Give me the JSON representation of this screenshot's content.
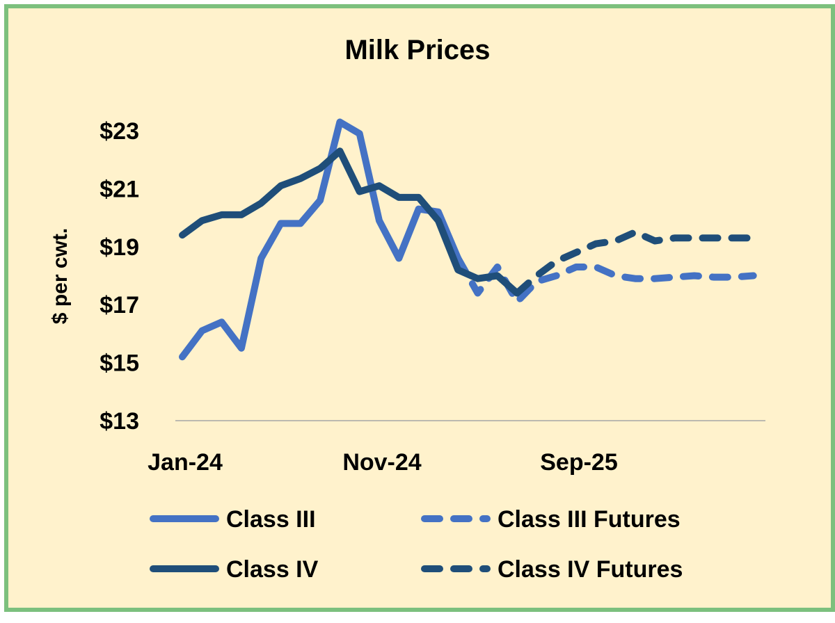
{
  "chart_data": {
    "type": "line",
    "title": "Milk Prices",
    "ylabel": "$ per cwt.",
    "xlabel": "",
    "ylim": [
      13,
      23
    ],
    "yticks": [
      "$13",
      "$15",
      "$17",
      "$19",
      "$21",
      "$23"
    ],
    "ytick_values": [
      13,
      15,
      17,
      19,
      21,
      23
    ],
    "x": [
      "Jan-24",
      "Feb-24",
      "Mar-24",
      "Apr-24",
      "May-24",
      "Jun-24",
      "Jul-24",
      "Aug-24",
      "Sep-24",
      "Oct-24",
      "Nov-24",
      "Dec-24",
      "Jan-25",
      "Feb-25",
      "Mar-25",
      "Apr-25",
      "May-25",
      "Jun-25",
      "Jul-25",
      "Aug-25",
      "Sep-25",
      "Oct-25",
      "Nov-25",
      "Dec-25",
      "Jan-26",
      "Feb-26",
      "Mar-26",
      "Apr-26",
      "May-26",
      "Jun-26"
    ],
    "xticks": [
      "Jan-24",
      "Nov-24",
      "Sep-25"
    ],
    "xtick_indices": [
      0,
      10,
      20
    ],
    "grid": false,
    "legend": "bottom",
    "series": [
      {
        "name": "Class III",
        "color": "#4472c4",
        "dash": false,
        "values": [
          15.2,
          16.1,
          16.4,
          15.5,
          18.6,
          19.8,
          19.8,
          20.6,
          23.3,
          22.9,
          19.9,
          18.6,
          20.3,
          20.2,
          18.6,
          null,
          null,
          null,
          null,
          null,
          null,
          null,
          null,
          null,
          null,
          null,
          null,
          null,
          null,
          null
        ]
      },
      {
        "name": "Class III Futures",
        "color": "#4472c4",
        "dash": true,
        "values": [
          null,
          null,
          null,
          null,
          null,
          null,
          null,
          null,
          null,
          null,
          null,
          null,
          null,
          null,
          18.6,
          17.4,
          18.3,
          17.1,
          17.8,
          18.0,
          18.3,
          18.3,
          18.0,
          17.9,
          17.9,
          17.95,
          18.0,
          17.95,
          17.95,
          18.0
        ]
      },
      {
        "name": "Class IV",
        "color": "#1f4e79",
        "dash": false,
        "values": [
          19.4,
          19.9,
          20.1,
          20.1,
          20.5,
          21.1,
          21.35,
          21.7,
          22.3,
          20.9,
          21.1,
          20.7,
          20.7,
          19.9,
          18.2,
          17.9,
          18.0,
          17.4,
          null,
          null,
          null,
          null,
          null,
          null,
          null,
          null,
          null,
          null,
          null,
          null
        ]
      },
      {
        "name": "Class IV Futures",
        "color": "#1f4e79",
        "dash": true,
        "values": [
          null,
          null,
          null,
          null,
          null,
          null,
          null,
          null,
          null,
          null,
          null,
          null,
          null,
          null,
          null,
          null,
          null,
          17.4,
          18.0,
          18.5,
          18.8,
          19.1,
          19.2,
          19.5,
          19.2,
          19.3,
          19.3,
          19.3,
          19.3,
          19.3
        ]
      }
    ]
  }
}
